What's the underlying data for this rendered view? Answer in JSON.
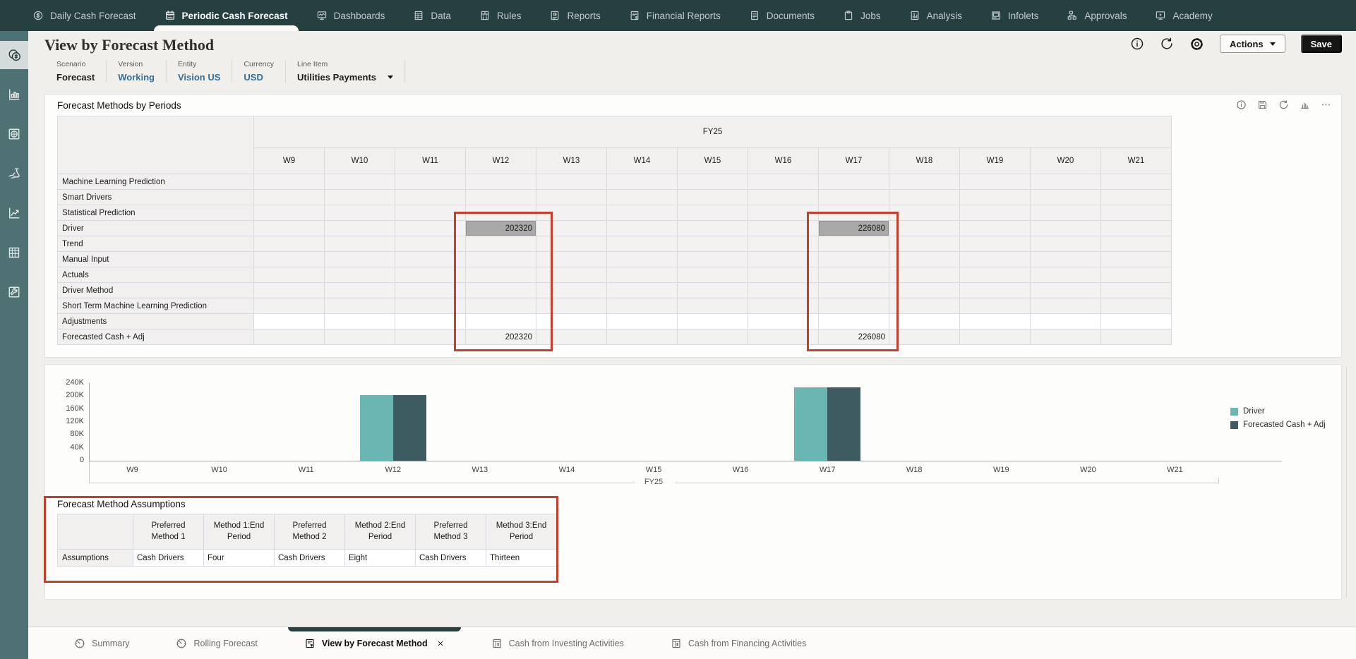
{
  "topnav": {
    "items": [
      {
        "label": "Daily Cash Forecast",
        "icon": "daily-cash-forecast",
        "active": false
      },
      {
        "label": "Periodic Cash Forecast",
        "icon": "periodic-cash-forecast",
        "active": true
      },
      {
        "label": "Dashboards",
        "icon": "dashboards",
        "active": false
      },
      {
        "label": "Data",
        "icon": "data",
        "active": false
      },
      {
        "label": "Rules",
        "icon": "rules",
        "active": false
      },
      {
        "label": "Reports",
        "icon": "reports",
        "active": false
      },
      {
        "label": "Financial Reports",
        "icon": "financial-reports",
        "active": false
      },
      {
        "label": "Documents",
        "icon": "documents",
        "active": false
      },
      {
        "label": "Jobs",
        "icon": "jobs",
        "active": false
      },
      {
        "label": "Analysis",
        "icon": "analysis",
        "active": false
      },
      {
        "label": "Infolets",
        "icon": "infolets",
        "active": false
      },
      {
        "label": "Approvals",
        "icon": "approvals",
        "active": false
      },
      {
        "label": "Academy",
        "icon": "academy",
        "active": false
      }
    ]
  },
  "sidebar": {
    "active_index": 0,
    "items": [
      "cash-management",
      "bar-analytics",
      "target",
      "funding",
      "trend",
      "data-grid",
      "tools"
    ]
  },
  "header": {
    "title": "View by Forecast Method",
    "actions_label": "Actions",
    "save_label": "Save"
  },
  "pov": {
    "items": [
      {
        "label": "Scenario",
        "value": "Forecast",
        "link": false,
        "dropdown": false
      },
      {
        "label": "Version",
        "value": "Working",
        "link": true,
        "dropdown": false
      },
      {
        "label": "Entity",
        "value": "Vision US",
        "link": true,
        "dropdown": false
      },
      {
        "label": "Currency",
        "value": "USD",
        "link": true,
        "dropdown": false
      },
      {
        "label": "Line Item",
        "value": "Utilities Payments",
        "link": false,
        "dropdown": true
      }
    ]
  },
  "grid": {
    "title": "Forecast Methods by Periods",
    "year_header": "FY25",
    "columns": [
      "W9",
      "W10",
      "W11",
      "W12",
      "W13",
      "W14",
      "W15",
      "W16",
      "W17",
      "W18",
      "W19",
      "W20",
      "W21"
    ],
    "highlight_color": "#a9a9a9",
    "rows": [
      {
        "label": "Machine Learning Prediction",
        "editable": false,
        "cells": {}
      },
      {
        "label": "Smart Drivers",
        "editable": false,
        "cells": {}
      },
      {
        "label": "Statistical Prediction",
        "editable": false,
        "cells": {}
      },
      {
        "label": "Driver",
        "editable": false,
        "cells": {
          "W12": {
            "value": "202320",
            "highlight": true
          },
          "W17": {
            "value": "226080",
            "highlight": true
          }
        }
      },
      {
        "label": "Trend",
        "editable": false,
        "cells": {}
      },
      {
        "label": "Manual Input",
        "editable": false,
        "cells": {}
      },
      {
        "label": "Actuals",
        "editable": false,
        "cells": {}
      },
      {
        "label": "Driver Method",
        "editable": false,
        "cells": {}
      },
      {
        "label": "Short Term Machine Learning Prediction",
        "editable": false,
        "cells": {}
      },
      {
        "label": "Adjustments",
        "editable": true,
        "cells": {}
      },
      {
        "label": "Forecasted Cash + Adj",
        "editable": false,
        "cells": {
          "W12": {
            "value": "202320",
            "highlight": false
          },
          "W17": {
            "value": "226080",
            "highlight": false
          }
        }
      }
    ]
  },
  "chart_data": {
    "type": "bar",
    "categories": [
      "W9",
      "W10",
      "W11",
      "W12",
      "W13",
      "W14",
      "W15",
      "W16",
      "W17",
      "W18",
      "W19",
      "W20",
      "W21"
    ],
    "series": [
      {
        "name": "Driver",
        "color": "#6ab6b2",
        "values": [
          null,
          null,
          null,
          202320,
          null,
          null,
          null,
          null,
          226080,
          null,
          null,
          null,
          null
        ]
      },
      {
        "name": "Forecasted Cash + Adj",
        "color": "#3d5b60",
        "values": [
          null,
          null,
          null,
          202320,
          null,
          null,
          null,
          null,
          226080,
          null,
          null,
          null,
          null
        ]
      }
    ],
    "ylim": [
      0,
      240000
    ],
    "ytick_labels": [
      "240K",
      "200K",
      "160K",
      "120K",
      "80K",
      "40K",
      "0"
    ],
    "group_label": "FY25",
    "legend_position": "right",
    "grid_lines": false
  },
  "assumptions": {
    "title": "Forecast Method Assumptions",
    "columns": [
      "Preferred Method 1",
      "Method 1:End Period",
      "Preferred Method 2",
      "Method 2:End Period",
      "Preferred Method 3",
      "Method 3:End Period"
    ],
    "row_label": "Assumptions",
    "values": [
      "Cash Drivers",
      "Four",
      "Cash Drivers",
      "Eight",
      "Cash Drivers",
      "Thirteen"
    ]
  },
  "annotations": {
    "color": "#c4402e",
    "targets": [
      "W12 column values",
      "W17 column values",
      "Forecast Method Assumptions table"
    ]
  },
  "bottom_tabs": {
    "items": [
      {
        "label": "Summary",
        "icon": "gauge",
        "active": false,
        "closable": false
      },
      {
        "label": "Rolling Forecast",
        "icon": "gauge",
        "active": false,
        "closable": false
      },
      {
        "label": "View by Forecast Method",
        "icon": "form-cursor",
        "active": true,
        "closable": true
      },
      {
        "label": "Cash from Investing Activities",
        "icon": "cash-form",
        "active": false,
        "closable": false
      },
      {
        "label": "Cash from Financing Activities",
        "icon": "cash-form",
        "active": false,
        "closable": false
      }
    ]
  }
}
